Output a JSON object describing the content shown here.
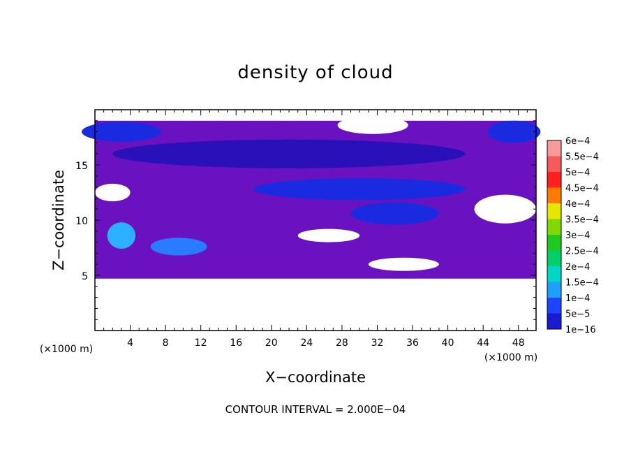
{
  "chart_data": {
    "type": "heatmap",
    "title": "density of cloud",
    "xlabel": "X−coordinate",
    "ylabel": "Z−coordinate",
    "x_unit_label": "(×1000 m)",
    "y_unit_label": "(×1000 m)",
    "xlim": [
      0,
      50
    ],
    "ylim": [
      0,
      20
    ],
    "x_ticks": [
      "4",
      "8",
      "12",
      "16",
      "20",
      "24",
      "28",
      "32",
      "36",
      "40",
      "44",
      "48"
    ],
    "y_ticks": [
      "5",
      "10",
      "15"
    ],
    "x_tick_values": [
      4,
      8,
      12,
      16,
      20,
      24,
      28,
      32,
      36,
      40,
      44,
      48
    ],
    "y_tick_values": [
      5,
      10,
      15
    ],
    "note": "CONTOUR INTERVAL = 2.000E−04",
    "colorbar": {
      "levels": [
        "6e−4",
        "5.5e−4",
        "5e−4",
        "4.5e−4",
        "4e−4",
        "3.5e−4",
        "3e−4",
        "2.5e−4",
        "2e−4",
        "1.5e−4",
        "1e−4",
        "5e−5",
        "1e−16"
      ],
      "colors": [
        "#f79a9a",
        "#f75a5a",
        "#ff2020",
        "#ff7a00",
        "#e6e600",
        "#7fd800",
        "#20c820",
        "#00d06a",
        "#00d6c8",
        "#1ea0ff",
        "#1e44ff",
        "#1a1ad0",
        "#6a12c0"
      ]
    },
    "cloud_layer_z_range": [
      4.7,
      19
    ],
    "field_colors": {
      "background": "#6a12c0",
      "dark_blue": "#2a10b8",
      "blue": "#1a2ae0",
      "light_blue": "#2a7cff",
      "cyan": "#2ab0ff"
    },
    "features": [
      {
        "name": "clear",
        "kind": "gap",
        "x": 23.2,
        "z": 2.8,
        "rx": 0.5,
        "rz": 1.8
      },
      {
        "name": "core1",
        "kind": "cyan",
        "x": 3.0,
        "z": 8.6,
        "rx": 1.6,
        "rz": 1.2
      },
      {
        "name": "core2",
        "kind": "light_blue",
        "x": 9.5,
        "z": 7.6,
        "rx": 3.2,
        "rz": 0.8
      },
      {
        "name": "band_upper",
        "kind": "dark_blue",
        "x": 22.0,
        "z": 16.0,
        "rx": 20.0,
        "rz": 1.3
      },
      {
        "name": "band_mid",
        "kind": "blue",
        "x": 30.0,
        "z": 12.8,
        "rx": 12.0,
        "rz": 1.0
      },
      {
        "name": "band_lower",
        "kind": "blue",
        "x": 34.0,
        "z": 10.6,
        "rx": 5.0,
        "rz": 1.0
      },
      {
        "name": "topleft",
        "kind": "blue",
        "x": 3.0,
        "z": 18.0,
        "rx": 4.5,
        "rz": 0.9
      },
      {
        "name": "topright",
        "kind": "blue",
        "x": 47.5,
        "z": 18.0,
        "rx": 3.0,
        "rz": 1.0
      },
      {
        "name": "hole_left",
        "kind": "gap",
        "x": 2.0,
        "z": 12.5,
        "rx": 2.0,
        "rz": 0.8
      },
      {
        "name": "hole_mid",
        "kind": "gap",
        "x": 26.5,
        "z": 8.6,
        "rx": 3.5,
        "rz": 0.6
      },
      {
        "name": "hole_right",
        "kind": "gap",
        "x": 46.5,
        "z": 11.0,
        "rx": 3.5,
        "rz": 1.3
      },
      {
        "name": "hole_top",
        "kind": "gap",
        "x": 31.5,
        "z": 18.6,
        "rx": 4.0,
        "rz": 0.8
      },
      {
        "name": "hole_low",
        "kind": "gap",
        "x": 35.0,
        "z": 6.0,
        "rx": 4.0,
        "rz": 0.6
      }
    ]
  }
}
